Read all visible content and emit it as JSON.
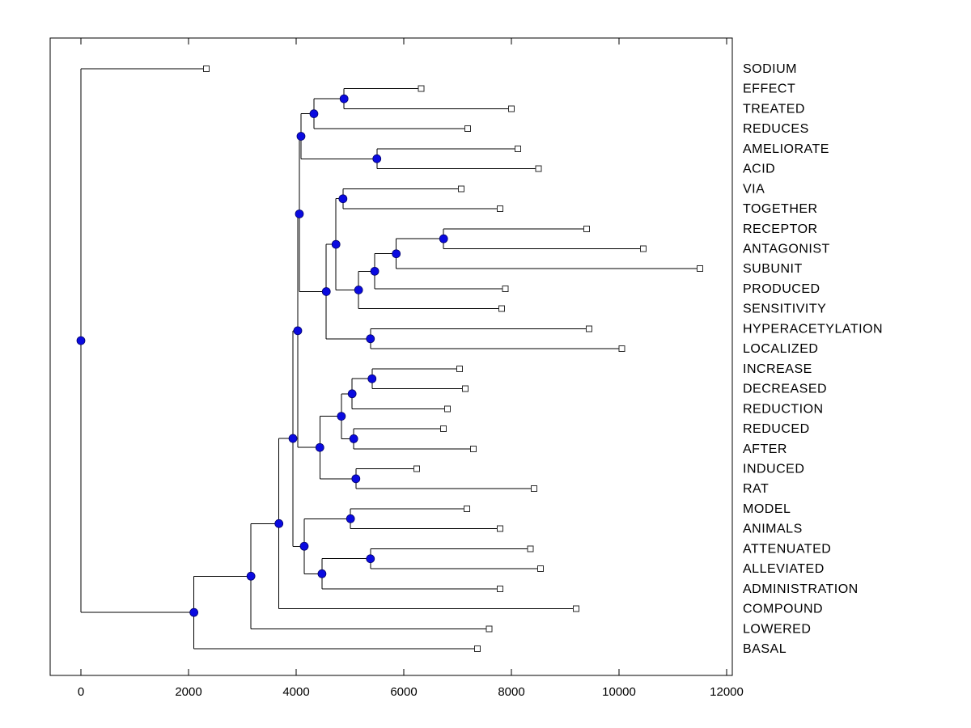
{
  "figure": {
    "background_color": "#ffffff"
  },
  "colors": {
    "line": "#000000",
    "branch_node_fill": "#0a0ae0",
    "leaf_node_fill": "#ffffff",
    "text": "#000000"
  },
  "chart_data": {
    "type": "dendrogram",
    "subtype": "phylogenetic-tree",
    "orientation": "left-to-right",
    "title": "",
    "xlabel": "",
    "ylabel": "",
    "grid": false,
    "legend": null,
    "x_tick_labels": [
      "0",
      "2000",
      "4000",
      "6000",
      "8000",
      "10000",
      "12000"
    ],
    "x_tick_values": [
      0,
      2000,
      4000,
      6000,
      8000,
      10000,
      12000
    ],
    "xlim": [
      -570,
      12100
    ],
    "leaf_order": [
      "SODIUM",
      "EFFECT",
      "TREATED",
      "REDUCES",
      "AMELIORATE",
      "ACID",
      "VIA",
      "TOGETHER",
      "RECEPTOR",
      "ANTAGONIST",
      "SUBUNIT",
      "PRODUCED",
      "SENSITIVITY",
      "HYPERACETYLATION",
      "LOCALIZED",
      "INCREASE",
      "DECREASED",
      "REDUCTION",
      "REDUCED",
      "AFTER",
      "INDUCED",
      "RAT",
      "MODEL",
      "ANIMALS",
      "ATTENUATED",
      "ALLEVIATED",
      "ADMINISTRATION",
      "COMPOUND",
      "LOWERED",
      "BASAL"
    ],
    "tree": {
      "x": 0,
      "children": [
        {
          "name": "SODIUM",
          "x": 2330
        },
        {
          "x": 2100,
          "children": [
            {
              "x": 3160,
              "children": [
                {
                  "x": 3680,
                  "children": [
                    {
                      "x": 3940,
                      "children": [
                        {
                          "x": 4030,
                          "children": [
                            {
                              "x": 4060,
                              "children": [
                                {
                                  "x": 4090,
                                  "children": [
                                    {
                                      "x": 4330,
                                      "children": [
                                        {
                                          "x": 4890,
                                          "children": [
                                            {
                                              "name": "EFFECT",
                                              "x": 6320
                                            },
                                            {
                                              "name": "TREATED",
                                              "x": 8000
                                            }
                                          ]
                                        },
                                        {
                                          "name": "REDUCES",
                                          "x": 7190
                                        }
                                      ]
                                    },
                                    {
                                      "x": 5500,
                                      "children": [
                                        {
                                          "name": "AMELIORATE",
                                          "x": 8120
                                        },
                                        {
                                          "name": "ACID",
                                          "x": 8500
                                        }
                                      ]
                                    }
                                  ]
                                },
                                {
                                  "x": 4560,
                                  "children": [
                                    {
                                      "x": 4740,
                                      "children": [
                                        {
                                          "x": 4870,
                                          "children": [
                                            {
                                              "name": "VIA",
                                              "x": 7070
                                            },
                                            {
                                              "name": "TOGETHER",
                                              "x": 7790
                                            }
                                          ]
                                        },
                                        {
                                          "x": 5160,
                                          "children": [
                                            {
                                              "x": 5460,
                                              "children": [
                                                {
                                                  "x": 5860,
                                                  "children": [
                                                    {
                                                      "x": 6740,
                                                      "children": [
                                                        {
                                                          "name": "RECEPTOR",
                                                          "x": 9400
                                                        },
                                                        {
                                                          "name": "ANTAGONIST",
                                                          "x": 10450
                                                        }
                                                      ]
                                                    },
                                                    {
                                                      "name": "SUBUNIT",
                                                      "x": 11500
                                                    }
                                                  ]
                                                },
                                                {
                                                  "name": "PRODUCED",
                                                  "x": 7890
                                                }
                                              ]
                                            },
                                            {
                                              "name": "SENSITIVITY",
                                              "x": 7820
                                            }
                                          ]
                                        }
                                      ]
                                    },
                                    {
                                      "x": 5380,
                                      "children": [
                                        {
                                          "name": "HYPERACETYLATION",
                                          "x": 9440
                                        },
                                        {
                                          "name": "LOCALIZED",
                                          "x": 10050
                                        }
                                      ]
                                    }
                                  ]
                                }
                              ]
                            },
                            {
                              "x": 4440,
                              "children": [
                                {
                                  "x": 4840,
                                  "children": [
                                    {
                                      "x": 5040,
                                      "children": [
                                        {
                                          "x": 5410,
                                          "children": [
                                            {
                                              "name": "INCREASE",
                                              "x": 7040
                                            },
                                            {
                                              "name": "DECREASED",
                                              "x": 7140
                                            }
                                          ]
                                        },
                                        {
                                          "name": "REDUCTION",
                                          "x": 6810
                                        }
                                      ]
                                    },
                                    {
                                      "x": 5070,
                                      "children": [
                                        {
                                          "name": "REDUCED",
                                          "x": 6740
                                        },
                                        {
                                          "name": "AFTER",
                                          "x": 7290
                                        }
                                      ]
                                    }
                                  ]
                                },
                                {
                                  "x": 5110,
                                  "children": [
                                    {
                                      "name": "INDUCED",
                                      "x": 6240
                                    },
                                    {
                                      "name": "RAT",
                                      "x": 8420
                                    }
                                  ]
                                }
                              ]
                            }
                          ]
                        },
                        {
                          "x": 4150,
                          "children": [
                            {
                              "x": 5010,
                              "children": [
                                {
                                  "name": "MODEL",
                                  "x": 7170
                                },
                                {
                                  "name": "ANIMALS",
                                  "x": 7790
                                }
                              ]
                            },
                            {
                              "x": 4480,
                              "children": [
                                {
                                  "x": 5380,
                                  "children": [
                                    {
                                      "name": "ATTENUATED",
                                      "x": 8350
                                    },
                                    {
                                      "name": "ALLEVIATED",
                                      "x": 8540
                                    }
                                  ]
                                },
                                {
                                  "name": "ADMINISTRATION",
                                  "x": 7790
                                }
                              ]
                            }
                          ]
                        }
                      ]
                    },
                    {
                      "name": "COMPOUND",
                      "x": 9200
                    }
                  ]
                },
                {
                  "name": "LOWERED",
                  "x": 7590
                }
              ]
            },
            {
              "name": "BASAL",
              "x": 7370
            }
          ]
        }
      ]
    }
  }
}
